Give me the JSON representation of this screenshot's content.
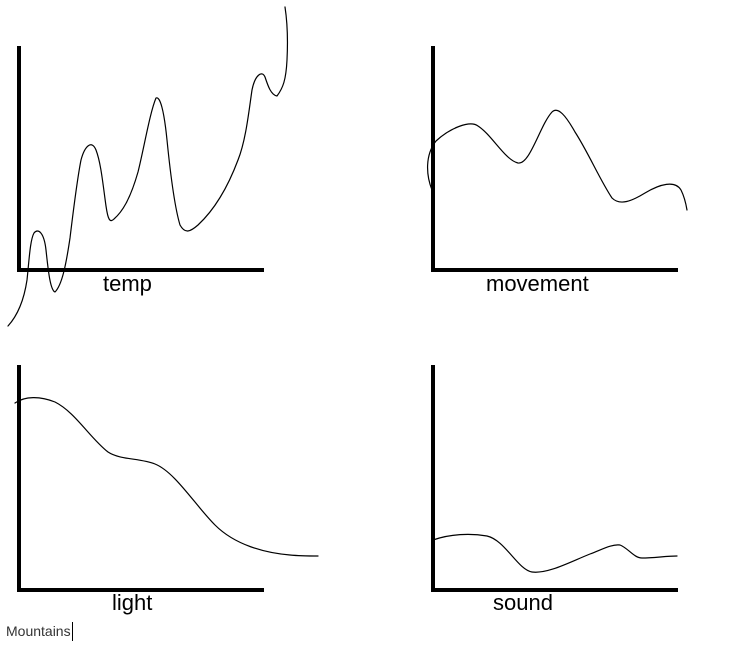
{
  "panels": [
    {
      "id": "temp",
      "label": "temp"
    },
    {
      "id": "movement",
      "label": "movement"
    },
    {
      "id": "light",
      "label": "light"
    },
    {
      "id": "sound",
      "label": "sound"
    }
  ],
  "caption": "Mountains"
}
